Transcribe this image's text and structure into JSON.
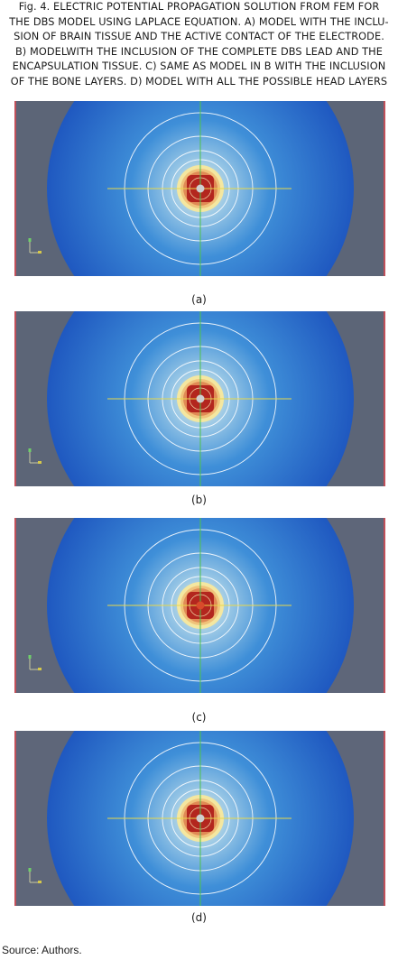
{
  "caption": {
    "lines": [
      "Fig. 4. ELECTRIC POTENTIAL PROPAGATION SOLUTION FROM FEM FOR",
      "THE DBS MODEL USING LAPLACE EQUATION. A) MODEL WITH THE INCLU-",
      "SION OF BRAIN TISSUE AND THE ACTIVE CONTACT OF THE ELECTRODE.",
      "B) MODELWITH THE INCLUSION OF THE COMPLETE DBS LEAD AND THE",
      "ENCAPSULATION TISSUE. C) SAME AS MODEL IN B WITH THE INCLUSION",
      "OF THE BONE LAYERS. D) MODEL WITH ALL THE POSSIBLE HEAD LAYERS"
    ]
  },
  "panels": [
    {
      "label": "(a)",
      "background": "#5c6577",
      "center_marker": "#cfcfcf"
    },
    {
      "label": "(b)",
      "background": "#5c6577",
      "center_marker": "#cfcfcf"
    },
    {
      "label": "(c)",
      "background": "#5e6679",
      "center_marker": "#d94a2b"
    },
    {
      "label": "(d)",
      "background": "#5e6679",
      "center_marker": "#cfcfcf"
    }
  ],
  "colors": {
    "field_outer": "#1f58c0",
    "field_mid": "#3f8fd8",
    "field_inner": "#9cc9e6",
    "hot_core": "#b3261e",
    "contour": "#ffffff",
    "axis_horizontal": "#e8d84a",
    "axis_vertical": "#4ec24a",
    "border_left": "#c0505a"
  },
  "source": "Source: Authors."
}
